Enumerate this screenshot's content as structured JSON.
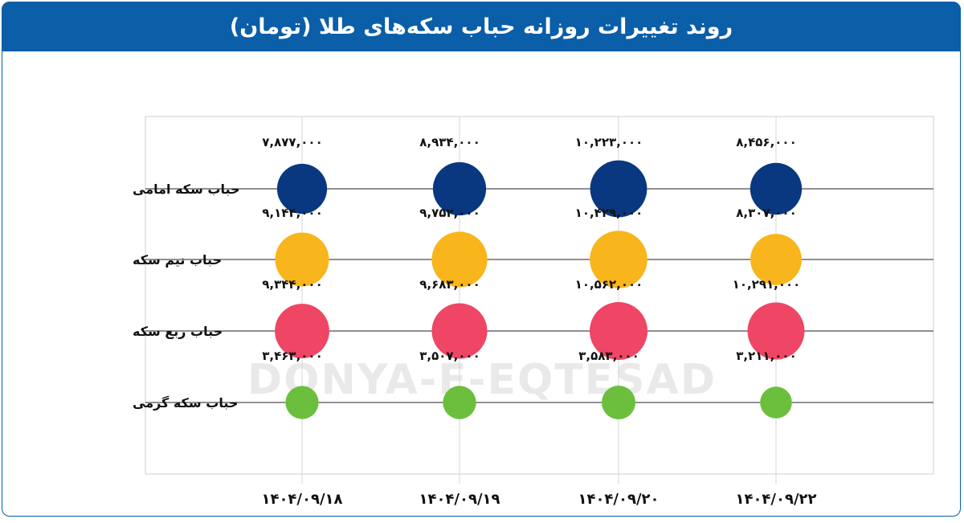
{
  "header": {
    "title": "روند تغییرات روزانه حباب سکه‌های طلا (تومان)"
  },
  "watermark": {
    "text": "DONYA-E-EQTESAD"
  },
  "chart_data": {
    "type": "bubble",
    "title": "روند تغییرات روزانه حباب سکه‌های طلا (تومان)",
    "categories": [
      "۱۴۰۴/۰۹/۱۸",
      "۱۴۰۴/۰۹/۱۹",
      "۱۴۰۴/۰۹/۲۰",
      "۱۴۰۴/۰۹/۲۲"
    ],
    "grid": true,
    "series": [
      {
        "name": "حباب سکه امامی",
        "color": "#0a3880",
        "values": [
          7877000,
          8934000,
          10223000,
          8456000
        ],
        "labels": [
          "۷,۸۷۷,۰۰۰",
          "۸,۹۳۴,۰۰۰",
          "۱۰,۲۲۳,۰۰۰",
          "۸,۴۵۶,۰۰۰"
        ]
      },
      {
        "name": "حباب نیم سکه",
        "color": "#f8b51c",
        "values": [
          9144000,
          9752000,
          10429000,
          8307000
        ],
        "labels": [
          "۹,۱۴۴,۰۰۰",
          "۹,۷۵۲,۰۰۰",
          "۱۰,۴۲۹,۰۰۰",
          "۸,۳۰۷,۰۰۰"
        ]
      },
      {
        "name": "حباب ربع سکه",
        "color": "#ee4664",
        "values": [
          9344000,
          9683000,
          10562000,
          10291000
        ],
        "labels": [
          "۹,۳۴۴,۰۰۰",
          "۹,۶۸۳,۰۰۰",
          "۱۰,۵۶۲,۰۰۰",
          "۱۰,۲۹۱,۰۰۰"
        ]
      },
      {
        "name": "حباب سکه گرمی",
        "color": "#6bbf3d",
        "values": [
          3463000,
          3507000,
          3583000,
          3211000
        ],
        "labels": [
          "۳,۴۶۳,۰۰۰",
          "۳,۵۰۷,۰۰۰",
          "۳,۵۸۳,۰۰۰",
          "۳,۲۱۱,۰۰۰"
        ]
      }
    ]
  }
}
